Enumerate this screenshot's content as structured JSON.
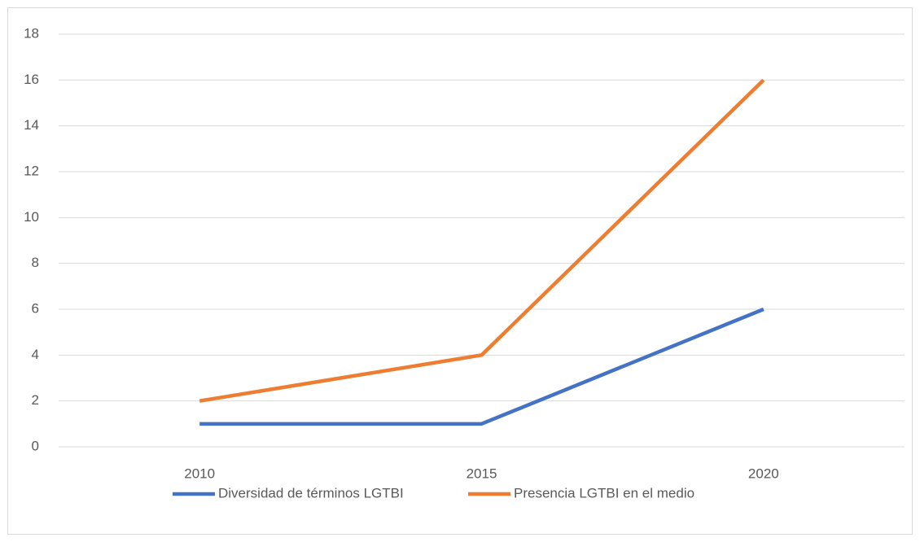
{
  "chart_data": {
    "type": "line",
    "categories": [
      "2010",
      "2015",
      "2020"
    ],
    "series": [
      {
        "name": "Diversidad de términos LGTBI",
        "color": "#4472c4",
        "values": [
          1,
          1,
          6
        ]
      },
      {
        "name": "Presencia LGTBI en el medio",
        "color": "#ed7d31",
        "values": [
          2,
          4,
          16
        ]
      }
    ],
    "ylim": [
      0,
      18
    ],
    "yticks": [
      0,
      2,
      4,
      6,
      8,
      10,
      12,
      14,
      16,
      18
    ],
    "grid": true,
    "legend": "bottom"
  }
}
